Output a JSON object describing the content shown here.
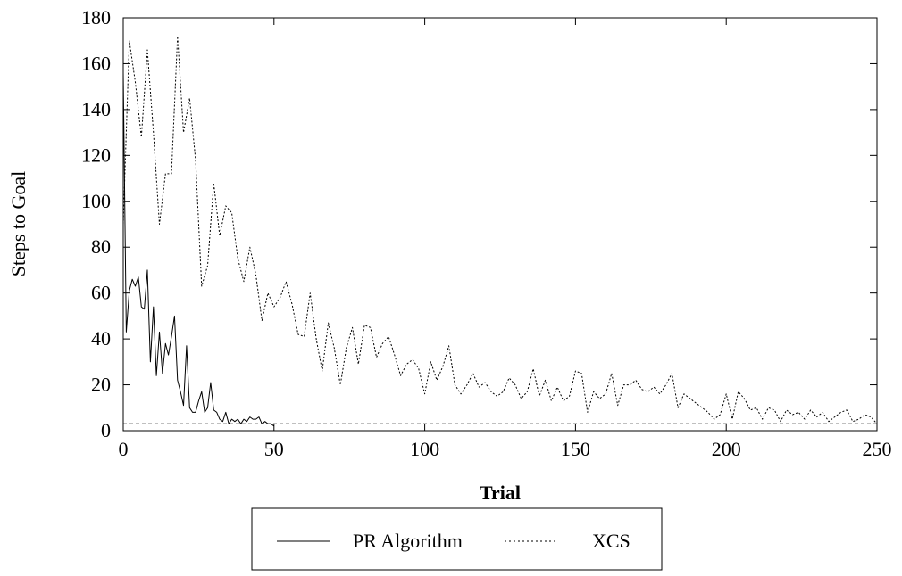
{
  "chart_data": {
    "type": "line",
    "title": "",
    "xlabel": "Trial",
    "ylabel": "Steps to Goal",
    "xlim": [
      0,
      250
    ],
    "ylim": [
      0,
      180
    ],
    "xticks": [
      "0",
      "50",
      "100",
      "150",
      "200",
      "250"
    ],
    "yticks": [
      "0",
      "20",
      "40",
      "60",
      "80",
      "100",
      "120",
      "140",
      "160",
      "180"
    ],
    "grid": false,
    "legend_position": "bottom, below the x-axis label",
    "reference_line": {
      "y": 3,
      "style": "dashed"
    },
    "series": [
      {
        "name": "PR Algorithm",
        "style": "solid",
        "color": "#000000",
        "x": [
          0,
          1,
          2,
          3,
          4,
          5,
          6,
          7,
          8,
          9,
          10,
          11,
          12,
          13,
          14,
          15,
          16,
          17,
          18,
          19,
          20,
          21,
          22,
          23,
          24,
          25,
          26,
          27,
          28,
          29,
          30,
          31,
          32,
          33,
          34,
          35,
          36,
          37,
          38,
          39,
          40,
          41,
          42,
          43,
          44,
          45,
          46,
          47,
          48,
          49,
          50
        ],
        "y": [
          156,
          43,
          61,
          66,
          63,
          67,
          54,
          53,
          70,
          30,
          54,
          24,
          43,
          25,
          38,
          33,
          41,
          50,
          22,
          17,
          11,
          37,
          10,
          8,
          8,
          13,
          17,
          8,
          10,
          21,
          9,
          8,
          5,
          4,
          8,
          3,
          5,
          4,
          5,
          3,
          5,
          4,
          6,
          5,
          5,
          6,
          3,
          4,
          3,
          3,
          2
        ]
      },
      {
        "name": "XCS",
        "style": "dotted",
        "color": "#000000",
        "x": [
          0,
          2,
          4,
          6,
          8,
          10,
          12,
          14,
          16,
          18,
          20,
          22,
          24,
          26,
          28,
          30,
          32,
          34,
          36,
          38,
          40,
          42,
          44,
          46,
          48,
          50,
          52,
          54,
          56,
          58,
          60,
          62,
          64,
          66,
          68,
          70,
          72,
          74,
          76,
          78,
          80,
          82,
          84,
          86,
          88,
          90,
          92,
          94,
          96,
          98,
          100,
          102,
          104,
          106,
          108,
          110,
          112,
          114,
          116,
          118,
          120,
          122,
          124,
          126,
          128,
          130,
          132,
          134,
          136,
          138,
          140,
          142,
          144,
          146,
          148,
          150,
          152,
          154,
          156,
          158,
          160,
          162,
          164,
          166,
          168,
          170,
          172,
          174,
          176,
          178,
          180,
          182,
          184,
          186,
          188,
          190,
          192,
          194,
          196,
          198,
          200,
          202,
          204,
          206,
          208,
          210,
          212,
          214,
          216,
          218,
          220,
          222,
          224,
          226,
          228,
          230,
          232,
          234,
          236,
          238,
          240,
          242,
          244,
          246,
          248,
          250
        ],
        "y": [
          90,
          170,
          152,
          128,
          166,
          130,
          90,
          112,
          112,
          172,
          130,
          145,
          118,
          63,
          72,
          108,
          85,
          98,
          95,
          75,
          65,
          80,
          68,
          48,
          60,
          54,
          58,
          65,
          55,
          42,
          41,
          60,
          40,
          26,
          47,
          36,
          20,
          36,
          45,
          29,
          46,
          45,
          32,
          38,
          41,
          33,
          24,
          29,
          31,
          27,
          16,
          30,
          22,
          28,
          37,
          20,
          16,
          20,
          25,
          19,
          21,
          17,
          15,
          17,
          23,
          20,
          14,
          17,
          27,
          15,
          22,
          13,
          19,
          13,
          15,
          26,
          25,
          8,
          17,
          14,
          16,
          25,
          11,
          20,
          20,
          22,
          18,
          17,
          19,
          16,
          20,
          25,
          10,
          16,
          14,
          12,
          10,
          8,
          5,
          7,
          16,
          5,
          17,
          14,
          9,
          10,
          5,
          10,
          9,
          4,
          9,
          7,
          8,
          5,
          9,
          6,
          8,
          4,
          6,
          8,
          9,
          4,
          5,
          7,
          6,
          3
        ]
      }
    ]
  }
}
